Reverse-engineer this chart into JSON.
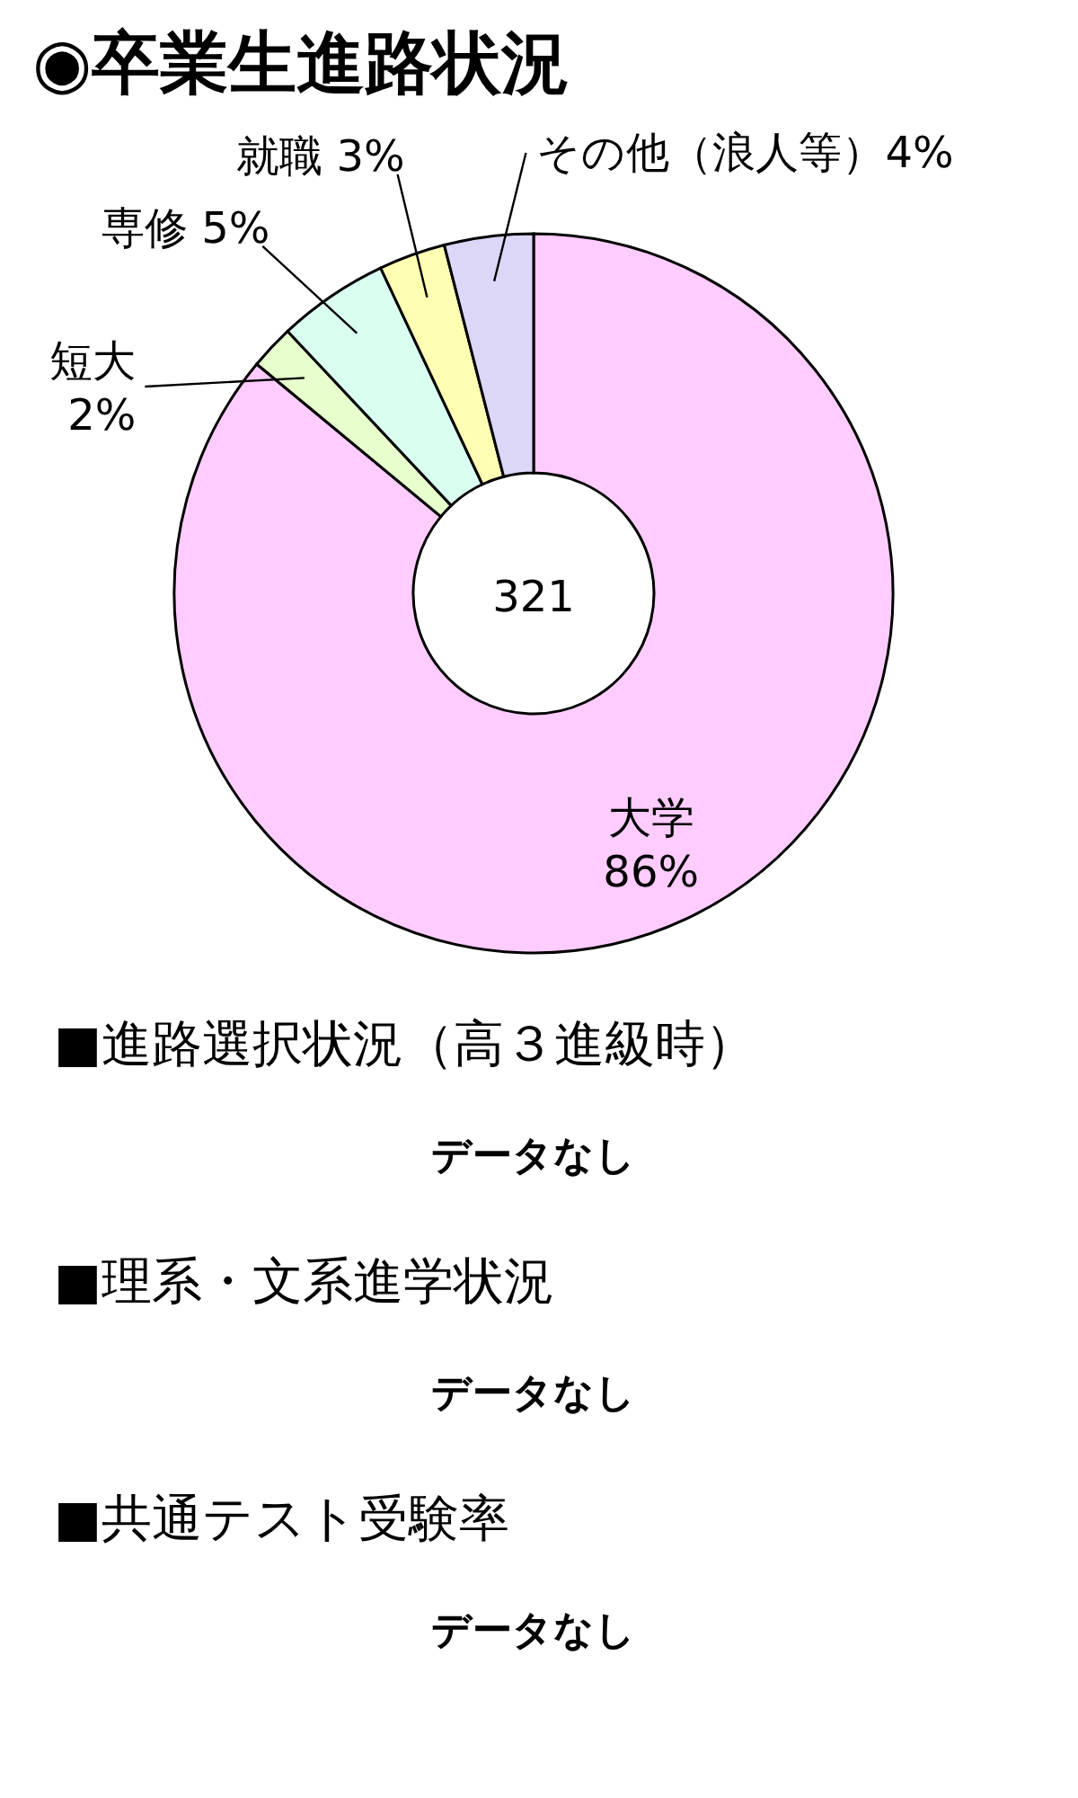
{
  "chart_data": [
    {
      "type": "donut",
      "title": "◉卒業生進路状況",
      "categories": [
        "大学",
        "短大",
        "専修",
        "就職",
        "その他（浪人等）"
      ],
      "values": [
        86,
        2,
        5,
        3,
        4
      ],
      "colors": [
        "#ffccff",
        "#e6ffcc",
        "#d9fff0",
        "#ffffb3",
        "#dcd6f7"
      ],
      "value_labels": [
        "86%",
        "2%",
        "5%",
        "3%",
        "4%"
      ],
      "annotations": [
        "321"
      ]
    },
    {
      "type": "other",
      "title": "■進路選択状況（高３進級時）",
      "annotations": [
        "データなし"
      ]
    },
    {
      "type": "other",
      "title": "■理系・文系進学状況",
      "annotations": [
        "データなし"
      ]
    },
    {
      "type": "other",
      "title": "■共通テスト受験率",
      "annotations": [
        "データなし"
      ]
    }
  ]
}
